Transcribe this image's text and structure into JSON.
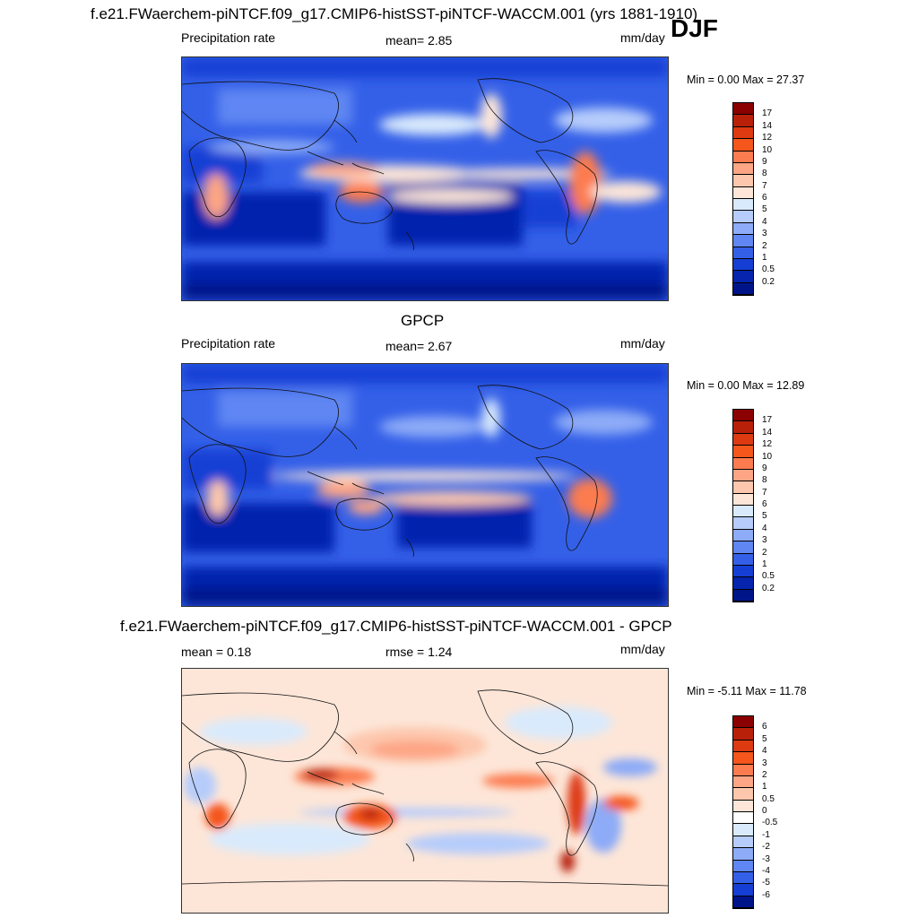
{
  "header": {
    "title": "f.e21.FWaerchem-piNTCF.f09_g17.CMIP6-histSST-piNTCF-WACCM.001 (yrs 1881-1910)",
    "season": "DJF"
  },
  "panels": [
    {
      "id": "model",
      "subtitle": "",
      "left_label": "Precipitation rate",
      "mid_label": "mean=   2.85",
      "right_label": "mm/day",
      "minmax": "Min =   0.00 Max =  27.37",
      "colorbar": {
        "labels": [
          "17",
          "14",
          "12",
          "10",
          "9",
          "8",
          "7",
          "6",
          "5",
          "4",
          "3",
          "2",
          "1",
          "0.5",
          "0.2"
        ],
        "colors": [
          "#8b0000",
          "#b8200a",
          "#dd3a12",
          "#f4561c",
          "#fc7b4f",
          "#fda585",
          "#fdc7ad",
          "#fde6d8",
          "#d9eafc",
          "#b6ccfb",
          "#8dabf7",
          "#5f86f2",
          "#3460e8",
          "#153fd4",
          "#0624ad",
          "#00148a"
        ]
      }
    },
    {
      "id": "obs",
      "subtitle": "GPCP",
      "left_label": "Precipitation rate",
      "mid_label": "mean=   2.67",
      "right_label": "mm/day",
      "minmax": "Min =   0.00 Max =  12.89",
      "colorbar": {
        "labels": [
          "17",
          "14",
          "12",
          "10",
          "9",
          "8",
          "7",
          "6",
          "5",
          "4",
          "3",
          "2",
          "1",
          "0.5",
          "0.2"
        ],
        "colors": [
          "#8b0000",
          "#b8200a",
          "#dd3a12",
          "#f4561c",
          "#fc7b4f",
          "#fda585",
          "#fdc7ad",
          "#fde6d8",
          "#d9eafc",
          "#b6ccfb",
          "#8dabf7",
          "#5f86f2",
          "#3460e8",
          "#153fd4",
          "#0624ad",
          "#00148a"
        ]
      }
    },
    {
      "id": "diff",
      "subtitle": "f.e21.FWaerchem-piNTCF.f09_g17.CMIP6-histSST-piNTCF-WACCM.001 - GPCP",
      "left_label": "mean =   0.18",
      "mid_label": "rmse =   1.24",
      "right_label": "mm/day",
      "minmax": "Min =  -5.11 Max =  11.78",
      "colorbar": {
        "labels": [
          "6",
          "5",
          "4",
          "3",
          "2",
          "1",
          "0.5",
          "0",
          "-0.5",
          "-1",
          "-2",
          "-3",
          "-4",
          "-5",
          "-6"
        ],
        "colors": [
          "#8b0000",
          "#b8200a",
          "#dd3a12",
          "#f4561c",
          "#fc7b4f",
          "#fda585",
          "#fdc7ad",
          "#fde6d8",
          "#ffffff",
          "#d9eafc",
          "#b6ccfb",
          "#8dabf7",
          "#5f86f2",
          "#3460e8",
          "#153fd4",
          "#00148a"
        ]
      }
    }
  ]
}
